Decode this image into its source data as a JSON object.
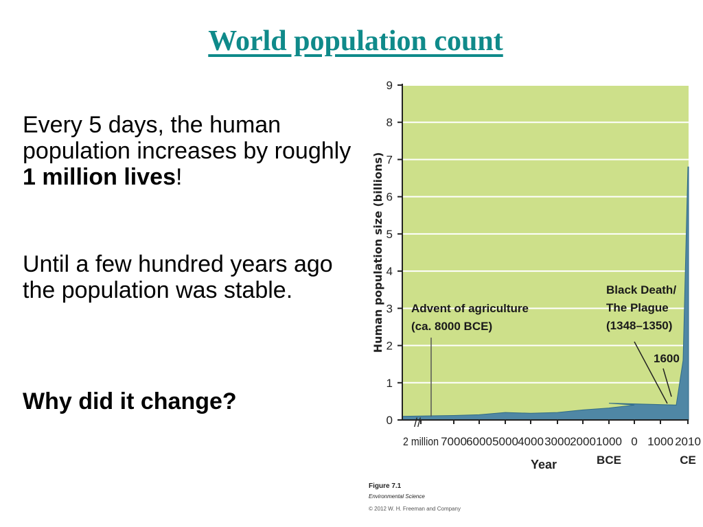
{
  "slide": {
    "title": "World population count",
    "paragraph1_prefix": "Every 5 days, the human population increases by roughly ",
    "paragraph1_bold": "1 million lives",
    "paragraph1_suffix": "!",
    "paragraph2": "Until a few hundred years ago the population was stable.",
    "paragraph3": "Why did it change?"
  },
  "figure": {
    "number": "Figure 7.1",
    "book": "Environmental Science",
    "copyright": "© 2012 W. H. Freeman and Company"
  },
  "chart_data": {
    "type": "area",
    "title": "",
    "ylabel": "Human population size (billions)",
    "xlabel": "Year",
    "ylim": [
      0,
      9
    ],
    "yticks": [
      0,
      1,
      2,
      3,
      4,
      5,
      6,
      7,
      8,
      9
    ],
    "grid": true,
    "x_ticks": [
      "2 million",
      "7000",
      "6000",
      "5000",
      "4000",
      "3000",
      "2000",
      "1000",
      "0",
      "1000",
      "2010"
    ],
    "era_labels": [
      {
        "label": "BCE",
        "under_tick": "1000"
      },
      {
        "label": "CE",
        "under_tick": "2010"
      }
    ],
    "axis_break": "//",
    "series": [
      {
        "x": [
          "2 million",
          "7000",
          "6000",
          "5000",
          "4000",
          "3000",
          "2000",
          "1000",
          "0",
          "1000",
          "1600",
          "1900",
          "2010"
        ],
        "y": [
          0.1,
          0.12,
          0.14,
          0.2,
          0.18,
          0.2,
          0.27,
          0.32,
          0.4,
          0.45,
          0.4,
          1.6,
          6.8
        ]
      }
    ],
    "annotations": [
      {
        "text": "Advent of agriculture\n(ca. 8000 BCE)"
      },
      {
        "text": "Black Death/\nThe Plague\n(1348–1350)"
      },
      {
        "text": "1600"
      }
    ],
    "colors": {
      "background": "#cde08a",
      "area": "#4f87a5",
      "grid": "#ffffff",
      "annotation_text": "#1a1a1a"
    }
  }
}
